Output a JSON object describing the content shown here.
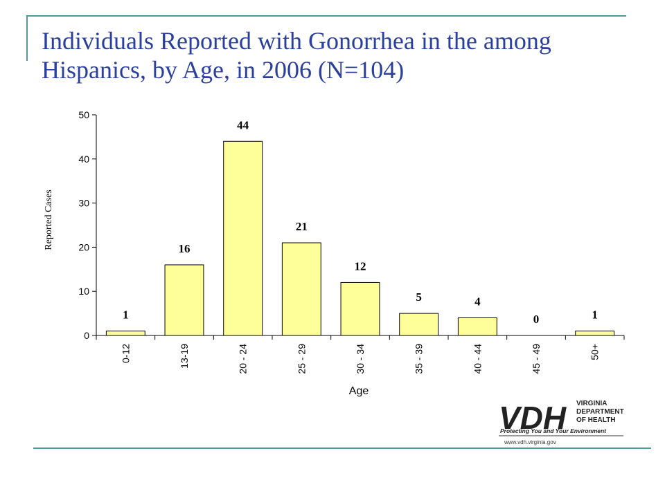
{
  "slide": {
    "title_line1": "Individuals Reported with Gonorrhea in the among",
    "title_line2": "Hispanics, by Age, in 2006 (N=104)",
    "accent_color": "#4e9a9a",
    "title_color": "#2a3f9e"
  },
  "chart_data": {
    "type": "bar",
    "categories": [
      "0-12",
      "13-19",
      "20 - 24",
      "25 - 29",
      "30 - 34",
      "35 - 39",
      "40 - 44",
      "45 - 49",
      "50+"
    ],
    "values": [
      1,
      16,
      44,
      21,
      12,
      5,
      4,
      0,
      1
    ],
    "title": "",
    "xlabel": "Age",
    "ylabel": "Reported Cases",
    "ylim": [
      0,
      50
    ],
    "yticks": [
      0,
      10,
      20,
      30,
      40,
      50
    ],
    "bar_color": "#ffff99",
    "bar_edge_color": "#000000",
    "grid": false,
    "data_labels": true
  },
  "logo": {
    "mark": "VDH",
    "line1": "VIRGINIA",
    "line2": "DEPARTMENT",
    "line3": "OF HEALTH",
    "tagline": "Protecting You and Your Environment",
    "url": "www.vdh.virginia.gov"
  }
}
